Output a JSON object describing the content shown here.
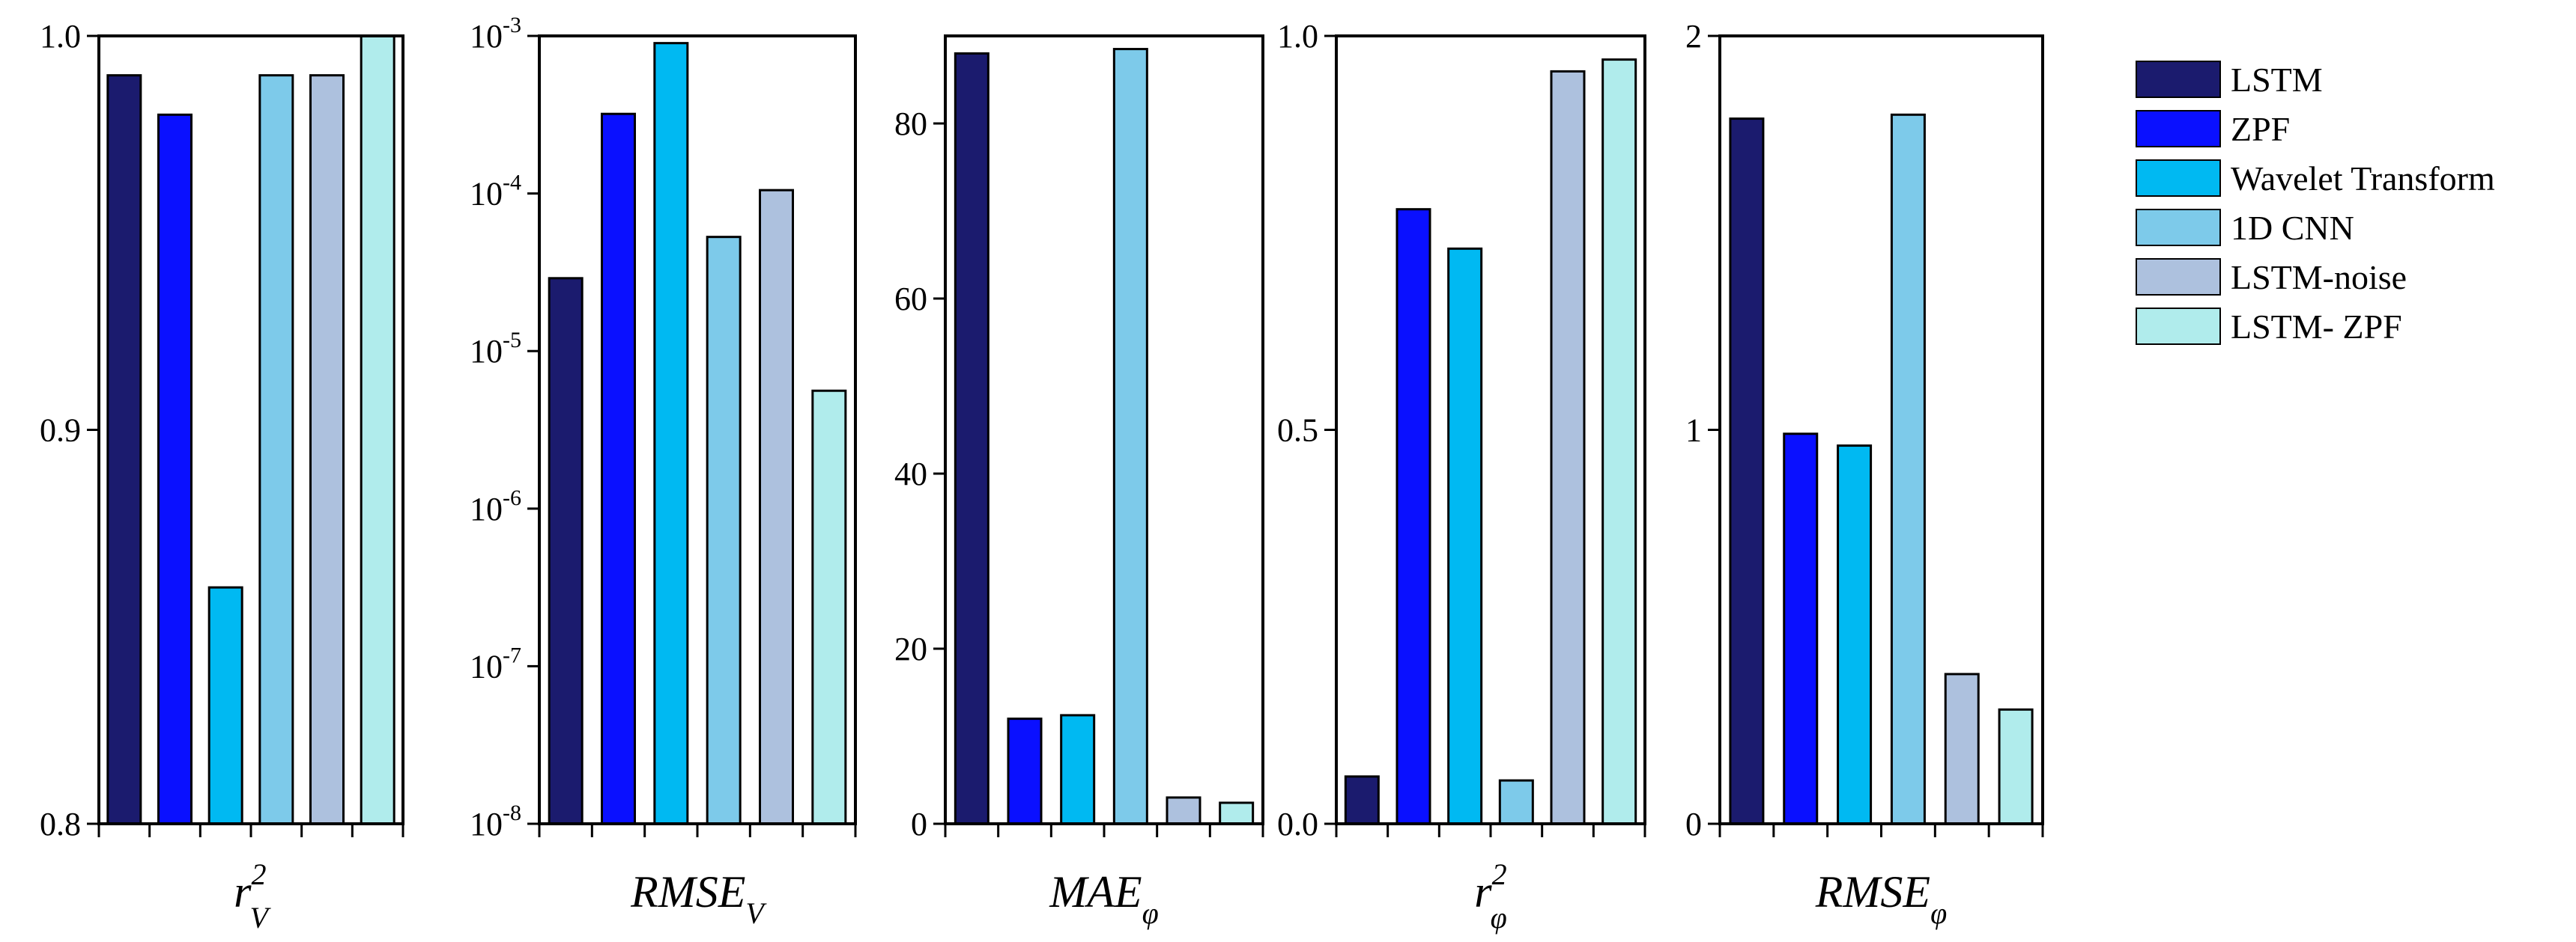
{
  "legend": {
    "items": [
      {
        "label": "LSTM",
        "color": "#1b1b6e"
      },
      {
        "label": "ZPF",
        "color": "#0a10ff"
      },
      {
        "label": "Wavelet Transform",
        "color": "#00b9f2"
      },
      {
        "label": "1D CNN",
        "color": "#7dcaea"
      },
      {
        "label": "LSTM-noise",
        "color": "#adc1de"
      },
      {
        "label": "LSTM- ZPF",
        "color": "#b0ecec"
      }
    ]
  },
  "chart_data": [
    {
      "type": "bar",
      "scale": "linear",
      "title": "r_V^2",
      "xlabel": {
        "base": "r",
        "sup": "2",
        "sub": "V"
      },
      "categories": [
        "LSTM",
        "ZPF",
        "Wavelet Transform",
        "1D CNN",
        "LSTM-noise",
        "LSTM- ZPF"
      ],
      "values": [
        0.99,
        0.98,
        0.86,
        0.99,
        0.99,
        1.0
      ],
      "ylim": [
        0.8,
        1.0
      ],
      "yticks": [
        0.8,
        0.9,
        1.0
      ],
      "ytick_labels": [
        "0.8",
        "0.9",
        "1.0"
      ]
    },
    {
      "type": "bar",
      "scale": "log",
      "title": "RMSE_V",
      "xlabel": {
        "base": "RMSE",
        "sup": "",
        "sub": "V"
      },
      "categories": [
        "LSTM",
        "ZPF",
        "Wavelet Transform",
        "1D CNN",
        "LSTM-noise",
        "LSTM- ZPF"
      ],
      "values": [
        2.9e-05,
        0.00032,
        0.0009,
        5.3e-05,
        0.000105,
        5.6e-06
      ],
      "ylim": [
        1e-08,
        0.001
      ],
      "yticks": [
        1e-08,
        1e-07,
        1e-06,
        1e-05,
        0.0001,
        0.001
      ],
      "ytick_labels": [
        {
          "base": "10",
          "exp": "-8"
        },
        {
          "base": "10",
          "exp": "-7"
        },
        {
          "base": "10",
          "exp": "-6"
        },
        {
          "base": "10",
          "exp": "-5"
        },
        {
          "base": "10",
          "exp": "-4"
        },
        {
          "base": "10",
          "exp": "-3"
        }
      ]
    },
    {
      "type": "bar",
      "scale": "linear",
      "title": "MAE_phi",
      "xlabel": {
        "base": "MAE",
        "sup": "",
        "sub": "φ"
      },
      "categories": [
        "LSTM",
        "ZPF",
        "Wavelet Transform",
        "1D CNN",
        "LSTM-noise",
        "LSTM- ZPF"
      ],
      "values": [
        88,
        12,
        12.4,
        88.5,
        3,
        2.4
      ],
      "ylim": [
        0,
        90
      ],
      "yticks": [
        0,
        20,
        40,
        60,
        80
      ],
      "ytick_labels": [
        "0",
        "20",
        "40",
        "60",
        "80"
      ]
    },
    {
      "type": "bar",
      "scale": "linear",
      "title": "r_phi^2",
      "xlabel": {
        "base": "r",
        "sup": "2",
        "sub": "φ"
      },
      "categories": [
        "LSTM",
        "ZPF",
        "Wavelet Transform",
        "1D CNN",
        "LSTM-noise",
        "LSTM- ZPF"
      ],
      "values": [
        0.06,
        0.78,
        0.73,
        0.055,
        0.955,
        0.97
      ],
      "ylim": [
        0,
        1.0
      ],
      "yticks": [
        0,
        0.5,
        1.0
      ],
      "ytick_labels": [
        "0.0",
        "0.5",
        "1.0"
      ]
    },
    {
      "type": "bar",
      "scale": "linear",
      "title": "RMSE_phi",
      "xlabel": {
        "base": "RMSE",
        "sup": "",
        "sub": "φ"
      },
      "categories": [
        "LSTM",
        "ZPF",
        "Wavelet Transform",
        "1D CNN",
        "LSTM-noise",
        "LSTM- ZPF"
      ],
      "values": [
        1.79,
        0.99,
        0.96,
        1.8,
        0.38,
        0.29
      ],
      "ylim": [
        0,
        2
      ],
      "yticks": [
        0,
        1,
        2
      ],
      "ytick_labels": [
        "0",
        "1",
        "2"
      ]
    }
  ]
}
